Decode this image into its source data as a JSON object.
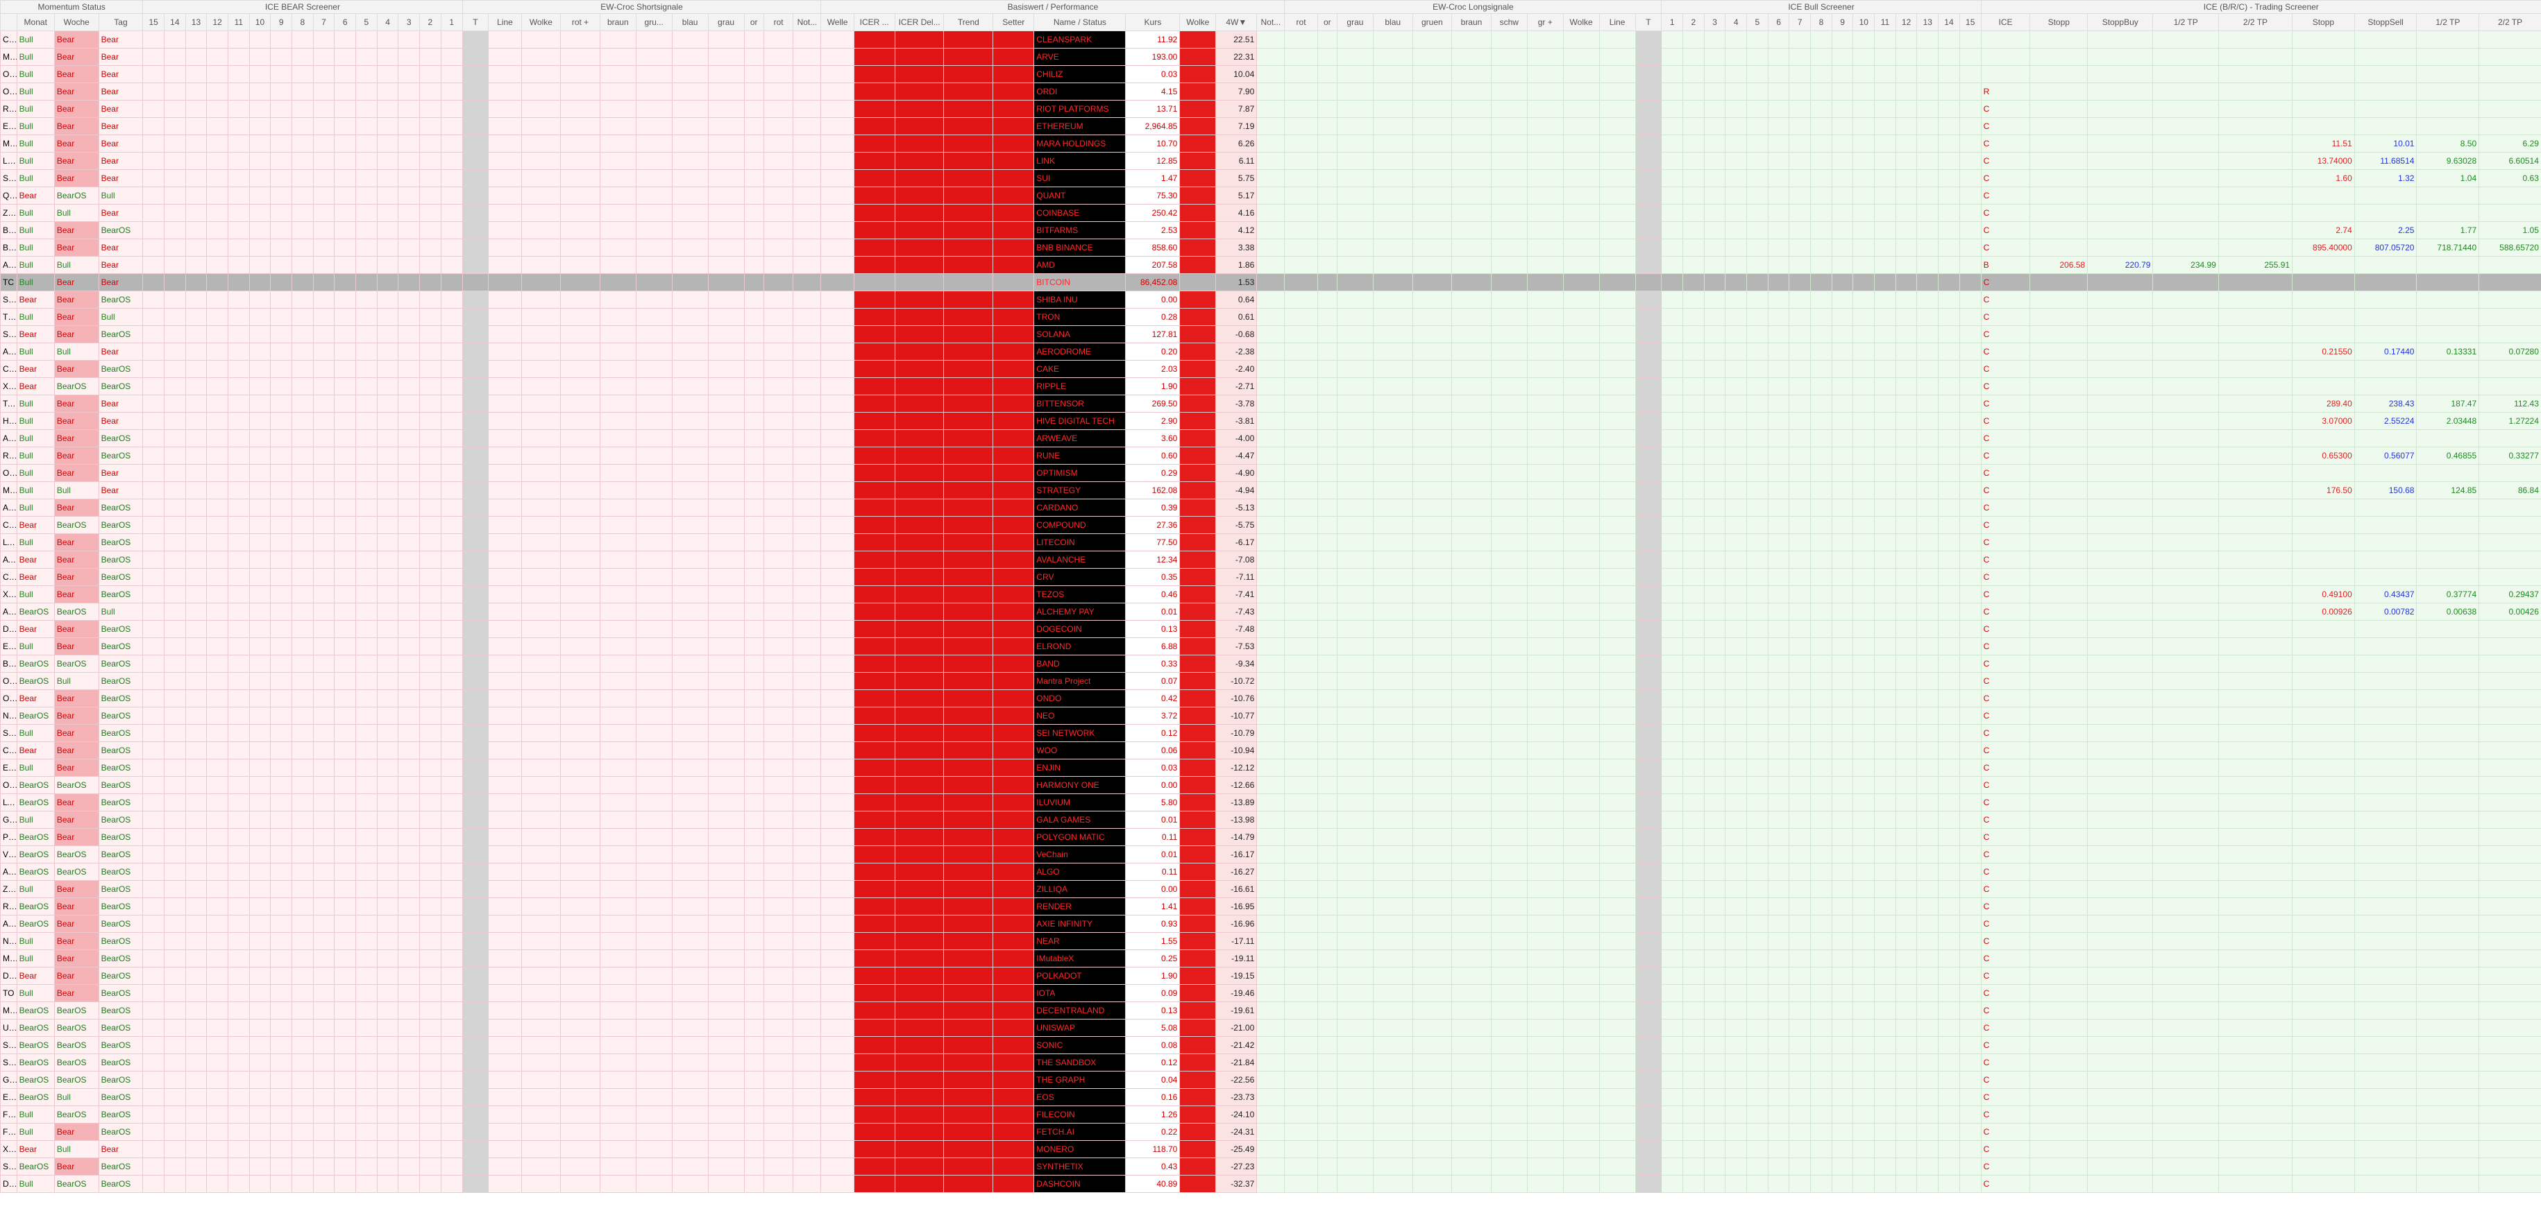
{
  "table": {
    "groups": [
      "Momentum Status",
      "ICE BEAR Screener",
      "EW-Croc Shortsignale",
      "Basiswert / Performance",
      "EW-Croc Longsignale",
      "ICE Bull Screener",
      "ICE (B/R/C) - Trading Screener"
    ],
    "columns": [
      "Monat",
      "Woche",
      "Tag",
      "15",
      "14",
      "13",
      "12",
      "11",
      "10",
      "9",
      "8",
      "7",
      "6",
      "5",
      "4",
      "3",
      "2",
      "1",
      "T",
      "Line",
      "Wolke",
      "rot +",
      "braun",
      "gru...",
      "blau",
      "grau",
      "or",
      "rot",
      "Not...",
      "Welle",
      "ICER ...",
      "ICER Del...",
      "Trend",
      "Setter",
      "Name / Status",
      "Kurs",
      "Wolke",
      "4W▼",
      "Not...",
      "rot",
      "or",
      "grau",
      "blau",
      "gruen",
      "braun",
      "schw",
      "gr +",
      "Wolke",
      "Line",
      "T",
      "1",
      "2",
      "3",
      "4",
      "5",
      "6",
      "7",
      "8",
      "9",
      "10",
      "11",
      "12",
      "13",
      "14",
      "15",
      "ICE",
      "Stopp",
      "StoppBuy",
      "1/2 TP",
      "2/2 TP",
      "Stopp",
      "StoppSell",
      "1/2 TP",
      "2/2 TP"
    ],
    "rows": [
      {
        "sym": "CLS",
        "month": "Bull",
        "week": "Bear",
        "day": "Bear",
        "name": "CLEANSPARK",
        "price": "11.92",
        "change": "22.51"
      },
      {
        "sym": "MAI",
        "month": "Bull",
        "week": "Bear",
        "day": "Bear",
        "name": "ARVE",
        "price": "193.00",
        "change": "22.31"
      },
      {
        "sym": "OG",
        "month": "Bull",
        "week": "Bear",
        "day": "Bear",
        "name": "CHILIZ",
        "price": "0.03",
        "change": "10.04"
      },
      {
        "sym": "ORI",
        "month": "Bull",
        "week": "Bear",
        "day": "Bear",
        "name": "ORDI",
        "price": "4.15",
        "change": "7.90",
        "ice": "R"
      },
      {
        "sym": "RIO",
        "month": "Bull",
        "week": "Bear",
        "day": "Bear",
        "name": "RIOT PLATFORMS",
        "price": "13.71",
        "change": "7.87",
        "ice": "C"
      },
      {
        "sym": "ETH",
        "month": "Bull",
        "week": "Bear",
        "day": "Bear",
        "name": "ETHEREUM",
        "price": "2,964.85",
        "change": "7.19",
        "ice": "C"
      },
      {
        "sym": "MA",
        "month": "Bull",
        "week": "Bear",
        "day": "Bear",
        "name": "MARA HOLDINGS",
        "price": "10.70",
        "change": "6.26",
        "ice": "C",
        "sell": [
          "11.51",
          "10.01",
          "8.50",
          "6.29"
        ]
      },
      {
        "sym": "LIN",
        "month": "Bull",
        "week": "Bear",
        "day": "Bear",
        "name": "LINK",
        "price": "12.85",
        "change": "6.11",
        "ice": "C",
        "sell": [
          "13.74000",
          "11.68514",
          "9.63028",
          "6.60514"
        ]
      },
      {
        "sym": "SUI",
        "month": "Bull",
        "week": "Bear",
        "day": "Bear",
        "name": "SUI",
        "price": "1.47",
        "change": "5.75",
        "ice": "C",
        "sell": [
          "1.60",
          "1.32",
          "1.04",
          "0.63"
        ]
      },
      {
        "sym": "QN",
        "month": "Bear",
        "week": "BearOS",
        "day": "Bull",
        "name": "QUANT",
        "price": "75.30",
        "change": "5.17",
        "ice": "C"
      },
      {
        "sym": "ZO",
        "month": "Bull",
        "week": "Bull",
        "day": "Bear",
        "name": "COINBASE",
        "price": "250.42",
        "change": "4.16",
        "ice": "C"
      },
      {
        "sym": "BIT",
        "month": "Bull",
        "week": "Bear",
        "day": "BearOS",
        "name": "BITFARMS",
        "price": "2.53",
        "change": "4.12",
        "ice": "C",
        "sell": [
          "2.74",
          "2.25",
          "1.77",
          "1.05"
        ]
      },
      {
        "sym": "BN",
        "month": "Bull",
        "week": "Bear",
        "day": "Bear",
        "name": "BNB BINANCE",
        "price": "858.60",
        "change": "3.38",
        "ice": "C",
        "sell": [
          "895.40000",
          "807.05720",
          "718.71440",
          "588.65720"
        ]
      },
      {
        "sym": "AM",
        "month": "Bull",
        "week": "Bull",
        "day": "Bear",
        "name": "AMD",
        "price": "207.58",
        "change": "1.86",
        "ice": "B",
        "buy": [
          "206.58",
          "220.79",
          "234.99",
          "255.91"
        ]
      },
      {
        "sym": "TC",
        "month": "Bull",
        "week": "Bear",
        "day": "Bear",
        "name": "BITCOIN",
        "price": "86,452.08",
        "change": "1.53",
        "ice": "C"
      },
      {
        "sym": "SHI",
        "month": "Bear",
        "week": "Bear",
        "day": "BearOS",
        "name": "SHIBA INU",
        "price": "0.00",
        "change": "0.64",
        "ice": "C"
      },
      {
        "sym": "TRX",
        "month": "Bull",
        "week": "Bear",
        "day": "Bull",
        "name": "TRON",
        "price": "0.28",
        "change": "0.61",
        "ice": "C"
      },
      {
        "sym": "SOL",
        "month": "Bear",
        "week": "Bear",
        "day": "BearOS",
        "name": "SOLANA",
        "price": "127.81",
        "change": "-0.68",
        "ice": "C"
      },
      {
        "sym": "ARE",
        "month": "Bull",
        "week": "Bull",
        "day": "Bear",
        "name": "AERODROME",
        "price": "0.20",
        "change": "-2.38",
        "ice": "C",
        "sell": [
          "0.21550",
          "0.17440",
          "0.13331",
          "0.07280"
        ]
      },
      {
        "sym": "CAI",
        "month": "Bear",
        "week": "Bear",
        "day": "BearOS",
        "name": "CAKE",
        "price": "2.03",
        "change": "-2.40",
        "ice": "C"
      },
      {
        "sym": "XRP",
        "month": "Bear",
        "week": "BearOS",
        "day": "BearOS",
        "name": "RIPPLE",
        "price": "1.90",
        "change": "-2.71",
        "ice": "C"
      },
      {
        "sym": "TAC",
        "month": "Bull",
        "week": "Bear",
        "day": "Bear",
        "name": "BITTENSOR",
        "price": "269.50",
        "change": "-3.78",
        "ice": "C",
        "sell": [
          "289.40",
          "238.43",
          "187.47",
          "112.43"
        ]
      },
      {
        "sym": "HIV",
        "month": "Bull",
        "week": "Bear",
        "day": "Bear",
        "name": "HIVE DIGITAL TECH",
        "price": "2.90",
        "change": "-3.81",
        "ice": "C",
        "sell": [
          "3.07000",
          "2.55224",
          "2.03448",
          "1.27224"
        ]
      },
      {
        "sym": "ARL",
        "month": "Bull",
        "week": "Bear",
        "day": "BearOS",
        "name": "ARWEAVE",
        "price": "3.60",
        "change": "-4.00",
        "ice": "C"
      },
      {
        "sym": "RUI",
        "month": "Bull",
        "week": "Bear",
        "day": "BearOS",
        "name": "RUNE",
        "price": "0.60",
        "change": "-4.47",
        "ice": "C",
        "sell": [
          "0.65300",
          "0.56077",
          "0.46855",
          "0.33277"
        ]
      },
      {
        "sym": "OPI",
        "month": "Bull",
        "week": "Bear",
        "day": "Bear",
        "name": "OPTIMISM",
        "price": "0.29",
        "change": "-4.90",
        "ice": "C"
      },
      {
        "sym": "MS",
        "month": "Bull",
        "week": "Bull",
        "day": "Bear",
        "name": "STRATEGY",
        "price": "162.08",
        "change": "-4.94",
        "ice": "C",
        "sell": [
          "176.50",
          "150.68",
          "124.85",
          "86.84"
        ]
      },
      {
        "sym": "ADI",
        "month": "Bull",
        "week": "Bear",
        "day": "BearOS",
        "name": "CARDANO",
        "price": "0.39",
        "change": "-5.13",
        "ice": "C"
      },
      {
        "sym": "COI",
        "month": "Bear",
        "week": "BearOS",
        "day": "BearOS",
        "name": "COMPOUND",
        "price": "27.36",
        "change": "-5.75",
        "ice": "C"
      },
      {
        "sym": "LTC",
        "month": "Bull",
        "week": "Bear",
        "day": "BearOS",
        "name": "LITECOIN",
        "price": "77.50",
        "change": "-6.17",
        "ice": "C"
      },
      {
        "sym": "AVA",
        "month": "Bear",
        "week": "Bear",
        "day": "BearOS",
        "name": "AVALANCHE",
        "price": "12.34",
        "change": "-7.08",
        "ice": "C"
      },
      {
        "sym": "CRV",
        "month": "Bear",
        "week": "Bear",
        "day": "BearOS",
        "name": "CRV",
        "price": "0.35",
        "change": "-7.11",
        "ice": "C"
      },
      {
        "sym": "XTZ",
        "month": "Bull",
        "week": "Bear",
        "day": "BearOS",
        "name": "TEZOS",
        "price": "0.46",
        "change": "-7.41",
        "ice": "C",
        "sell": [
          "0.49100",
          "0.43437",
          "0.37774",
          "0.29437"
        ]
      },
      {
        "sym": "ACI",
        "month": "BearOS",
        "week": "BearOS",
        "day": "Bull",
        "name": "ALCHEMY PAY",
        "price": "0.01",
        "change": "-7.43",
        "ice": "C",
        "sell": [
          "0.00926",
          "0.00782",
          "0.00638",
          "0.00426"
        ]
      },
      {
        "sym": "DOG",
        "month": "Bear",
        "week": "Bear",
        "day": "BearOS",
        "name": "DOGECOIN",
        "price": "0.13",
        "change": "-7.48",
        "ice": "C"
      },
      {
        "sym": "EGL",
        "month": "Bull",
        "week": "Bear",
        "day": "BearOS",
        "name": "ELROND",
        "price": "6.88",
        "change": "-7.53",
        "ice": "C"
      },
      {
        "sym": "BAN",
        "month": "BearOS",
        "week": "BearOS",
        "day": "BearOS",
        "name": "BAND",
        "price": "0.33",
        "change": "-9.34",
        "ice": "C"
      },
      {
        "sym": "OM",
        "month": "BearOS",
        "week": "Bull",
        "day": "BearOS",
        "name": "Mantra Project",
        "price": "0.07",
        "change": "-10.72",
        "ice": "C"
      },
      {
        "sym": "ON",
        "month": "Bear",
        "week": "Bear",
        "day": "BearOS",
        "name": "ONDO",
        "price": "0.42",
        "change": "-10.76",
        "ice": "C"
      },
      {
        "sym": "NEO",
        "month": "BearOS",
        "week": "Bear",
        "day": "BearOS",
        "name": "NEO",
        "price": "3.72",
        "change": "-10.77",
        "ice": "C"
      },
      {
        "sym": "SEI",
        "month": "Bull",
        "week": "Bear",
        "day": "BearOS",
        "name": "SEI NETWORK",
        "price": "0.12",
        "change": "-10.79",
        "ice": "C"
      },
      {
        "sym": "CX",
        "month": "Bear",
        "week": "Bear",
        "day": "BearOS",
        "name": "WOO",
        "price": "0.06",
        "change": "-10.94",
        "ice": "C"
      },
      {
        "sym": "ENJ",
        "month": "Bull",
        "week": "Bear",
        "day": "BearOS",
        "name": "ENJIN",
        "price": "0.03",
        "change": "-12.12",
        "ice": "C"
      },
      {
        "sym": "ONE",
        "month": "BearOS",
        "week": "BearOS",
        "day": "BearOS",
        "name": "HARMONY ONE",
        "price": "0.00",
        "change": "-12.66",
        "ice": "C"
      },
      {
        "sym": "LVI",
        "month": "BearOS",
        "week": "Bear",
        "day": "BearOS",
        "name": "ILUVIUM",
        "price": "5.80",
        "change": "-13.89",
        "ice": "C"
      },
      {
        "sym": "GAI",
        "month": "Bull",
        "week": "Bear",
        "day": "BearOS",
        "name": "GALA GAMES",
        "price": "0.01",
        "change": "-13.98",
        "ice": "C"
      },
      {
        "sym": "POL",
        "month": "BearOS",
        "week": "Bear",
        "day": "BearOS",
        "name": "POLYGON MATIC",
        "price": "0.11",
        "change": "-14.79",
        "ice": "C"
      },
      {
        "sym": "VET",
        "month": "BearOS",
        "week": "BearOS",
        "day": "BearOS",
        "name": "VeChain",
        "price": "0.01",
        "change": "-16.17",
        "ice": "C"
      },
      {
        "sym": "ALG",
        "month": "BearOS",
        "week": "BearOS",
        "day": "BearOS",
        "name": "ALGO",
        "price": "0.11",
        "change": "-16.27",
        "ice": "C"
      },
      {
        "sym": "ZIL",
        "month": "Bull",
        "week": "Bear",
        "day": "BearOS",
        "name": "ZILLIQA",
        "price": "0.00",
        "change": "-16.61",
        "ice": "C"
      },
      {
        "sym": "REN",
        "month": "BearOS",
        "week": "Bear",
        "day": "BearOS",
        "name": "RENDER",
        "price": "1.41",
        "change": "-16.95",
        "ice": "C"
      },
      {
        "sym": "AXS",
        "month": "BearOS",
        "week": "Bear",
        "day": "BearOS",
        "name": "AXIE INFINITY",
        "price": "0.93",
        "change": "-16.96",
        "ice": "C"
      },
      {
        "sym": "NEA",
        "month": "Bull",
        "week": "Bear",
        "day": "BearOS",
        "name": "NEAR",
        "price": "1.55",
        "change": "-17.11",
        "ice": "C"
      },
      {
        "sym": "MAN",
        "month": "Bull",
        "week": "Bear",
        "day": "BearOS",
        "name": "IMutableX",
        "price": "0.25",
        "change": "-19.11",
        "ice": "C"
      },
      {
        "sym": "DOT",
        "month": "Bear",
        "week": "Bear",
        "day": "BearOS",
        "name": "POLKADOT",
        "price": "1.90",
        "change": "-19.15",
        "ice": "C"
      },
      {
        "sym": "TO",
        "month": "Bull",
        "week": "Bear",
        "day": "BearOS",
        "name": "IOTA",
        "price": "0.09",
        "change": "-19.46",
        "ice": "C"
      },
      {
        "sym": "MA",
        "month": "BearOS",
        "week": "BearOS",
        "day": "BearOS",
        "name": "DECENTRALAND",
        "price": "0.13",
        "change": "-19.61",
        "ice": "C"
      },
      {
        "sym": "UNI",
        "month": "BearOS",
        "week": "BearOS",
        "day": "BearOS",
        "name": "UNISWAP",
        "price": "5.08",
        "change": "-21.00",
        "ice": "C"
      },
      {
        "sym": "SUS",
        "month": "BearOS",
        "week": "BearOS",
        "day": "BearOS",
        "name": "SONIC",
        "price": "0.08",
        "change": "-21.42",
        "ice": "C"
      },
      {
        "sym": "SAN",
        "month": "BearOS",
        "week": "BearOS",
        "day": "BearOS",
        "name": "THE SANDBOX",
        "price": "0.12",
        "change": "-21.84",
        "ice": "C"
      },
      {
        "sym": "GRT",
        "month": "BearOS",
        "week": "BearOS",
        "day": "BearOS",
        "name": "THE GRAPH",
        "price": "0.04",
        "change": "-22.56",
        "ice": "C"
      },
      {
        "sym": "EOS",
        "month": "BearOS",
        "week": "Bull",
        "day": "BearOS",
        "name": "EOS",
        "price": "0.16",
        "change": "-23.73",
        "ice": "C"
      },
      {
        "sym": "FIL",
        "month": "Bull",
        "week": "BearOS",
        "day": "BearOS",
        "name": "FILECOIN",
        "price": "1.26",
        "change": "-24.10",
        "ice": "C"
      },
      {
        "sym": "FET",
        "month": "Bull",
        "week": "Bear",
        "day": "BearOS",
        "name": "FETCH.AI",
        "price": "0.22",
        "change": "-24.31",
        "ice": "C"
      },
      {
        "sym": "XMI",
        "month": "Bear",
        "week": "Bull",
        "day": "Bear",
        "name": "MONERO",
        "price": "118.70",
        "change": "-25.49",
        "ice": "C"
      },
      {
        "sym": "SNX",
        "month": "BearOS",
        "week": "Bear",
        "day": "BearOS",
        "name": "SYNTHETIX",
        "price": "0.43",
        "change": "-27.23",
        "ice": "C"
      },
      {
        "sym": "DSI",
        "month": "Bull",
        "week": "BearOS",
        "day": "BearOS",
        "name": "DASHCOIN",
        "price": "40.89",
        "change": "-32.37",
        "ice": "C"
      }
    ]
  }
}
